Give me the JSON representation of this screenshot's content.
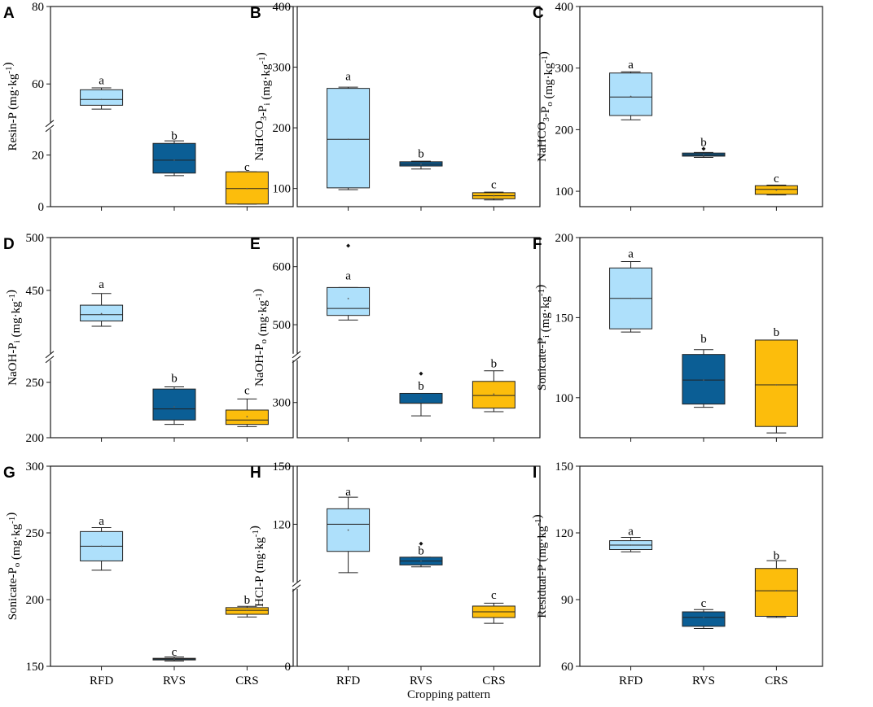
{
  "colors": {
    "RFD": "#aee0fb",
    "RVS": "#0b5e95",
    "CRS": "#fcbd0c",
    "axis": "#1a1a1a"
  },
  "x_title": "Cropping pattern",
  "chart_data": [
    {
      "id": "A",
      "type": "box",
      "ylabel": "Resin-P (mg·kg-1)",
      "categories": [
        "RFD",
        "RVS",
        "CRS"
      ],
      "segments": [
        {
          "domain": [
            0,
            30
          ],
          "ticks": [
            0,
            20
          ]
        },
        {
          "domain": [
            50,
            80
          ],
          "ticks": [
            60,
            80
          ]
        }
      ],
      "boxes": [
        {
          "cat": "RFD",
          "wlo": 53.5,
          "q1": 54.5,
          "med": 56,
          "q3": 58.5,
          "whi": 59,
          "mean": 56,
          "out": [],
          "letter": "a",
          "letterAt": 61
        },
        {
          "cat": "RVS",
          "wlo": 12,
          "q1": 13,
          "med": 18,
          "q3": 24.5,
          "whi": 25.5,
          "mean": 18,
          "out": [],
          "letter": "b",
          "letterAt": 27.5
        },
        {
          "cat": "CRS",
          "wlo": 1,
          "q1": 1,
          "med": 7,
          "q3": 13.5,
          "whi": 13.5,
          "mean": 7,
          "out": [],
          "letter": "c",
          "letterAt": 15.5
        }
      ]
    },
    {
      "id": "B",
      "type": "box",
      "ylabel": "NaHCO3-Pi (mg·kg-1)",
      "categories": [
        "RFD",
        "RVS",
        "CRS"
      ],
      "segments": [
        {
          "domain": [
            70,
            400
          ],
          "ticks": [
            100,
            200,
            300,
            400
          ]
        }
      ],
      "boxes": [
        {
          "cat": "RFD",
          "wlo": 98,
          "q1": 101,
          "med": 181,
          "q3": 265,
          "whi": 267,
          "mean": 181,
          "out": [],
          "letter": "a",
          "letterAt": 285
        },
        {
          "cat": "RVS",
          "wlo": 132,
          "q1": 137,
          "med": 140,
          "q3": 144,
          "whi": 145,
          "mean": 140,
          "out": [],
          "letter": "b",
          "letterAt": 158
        },
        {
          "cat": "CRS",
          "wlo": 81,
          "q1": 83,
          "med": 88,
          "q3": 93,
          "whi": 94,
          "mean": 88,
          "out": [],
          "letter": "c",
          "letterAt": 107
        }
      ]
    },
    {
      "id": "C",
      "type": "box",
      "ylabel": "NaHCO3-Po (mg·kg-1)",
      "categories": [
        "RFD",
        "RVS",
        "CRS"
      ],
      "segments": [
        {
          "domain": [
            75,
            400
          ],
          "ticks": [
            100,
            200,
            300,
            400
          ]
        }
      ],
      "boxes": [
        {
          "cat": "RFD",
          "wlo": 216,
          "q1": 223,
          "med": 253,
          "q3": 292,
          "whi": 294,
          "mean": 254,
          "out": [],
          "letter": "a",
          "letterAt": 306
        },
        {
          "cat": "RVS",
          "wlo": 155,
          "q1": 157,
          "med": 159,
          "q3": 162,
          "whi": 163,
          "mean": 159,
          "out": [
            169
          ],
          "letter": "b",
          "letterAt": 180
        },
        {
          "cat": "CRS",
          "wlo": 94,
          "q1": 95,
          "med": 103,
          "q3": 109,
          "whi": 110,
          "mean": 102,
          "out": [],
          "letter": "c",
          "letterAt": 121
        }
      ]
    },
    {
      "id": "D",
      "type": "box",
      "ylabel": "NaOH-Pi (mg·kg-1)",
      "categories": [
        "RFD",
        "RVS",
        "CRS"
      ],
      "segments": [
        {
          "domain": [
            200,
            270
          ],
          "ticks": [
            200,
            250
          ]
        },
        {
          "domain": [
            390,
            500
          ],
          "ticks": [
            450,
            500
          ]
        }
      ],
      "boxes": [
        {
          "cat": "RFD",
          "wlo": 416,
          "q1": 421,
          "med": 427,
          "q3": 436,
          "whi": 447,
          "mean": 428,
          "out": [],
          "letter": "a",
          "letterAt": 456
        },
        {
          "cat": "RVS",
          "wlo": 212,
          "q1": 216,
          "med": 226,
          "q3": 244,
          "whi": 246,
          "mean": 228,
          "out": [],
          "letter": "b",
          "letterAt": 254
        },
        {
          "cat": "CRS",
          "wlo": 210,
          "q1": 212,
          "med": 216,
          "q3": 225,
          "whi": 235,
          "mean": 219,
          "out": [],
          "letter": "c",
          "letterAt": 243
        }
      ]
    },
    {
      "id": "E",
      "type": "box",
      "ylabel": "NaOH-Po (mg·kg-1)",
      "categories": [
        "RFD",
        "RVS",
        "CRS"
      ],
      "segments": [
        {
          "domain": [
            250,
            360
          ],
          "ticks": [
            300
          ]
        },
        {
          "domain": [
            450,
            650
          ],
          "ticks": [
            500,
            600
          ]
        }
      ],
      "boxes": [
        {
          "cat": "RFD",
          "wlo": 508,
          "q1": 516,
          "med": 528,
          "q3": 564,
          "whi": 564,
          "mean": 545,
          "out": [
            636
          ],
          "letter": "a",
          "letterAt": 585
        },
        {
          "cat": "RVS",
          "wlo": 281,
          "q1": 299,
          "med": 299,
          "q3": 313,
          "whi": 313,
          "mean": 306,
          "out": [
            341
          ],
          "letter": "b",
          "letterAt": 324
        },
        {
          "cat": "CRS",
          "wlo": 287,
          "q1": 292,
          "med": 310,
          "q3": 330,
          "whi": 345,
          "mean": 312,
          "out": [],
          "letter": "b",
          "letterAt": 356
        }
      ]
    },
    {
      "id": "F",
      "type": "box",
      "ylabel": "Sonicate-Pi (mg·kg-1)",
      "categories": [
        "RFD",
        "RVS",
        "CRS"
      ],
      "segments": [
        {
          "domain": [
            75,
            200
          ],
          "ticks": [
            100,
            150,
            200
          ]
        }
      ],
      "boxes": [
        {
          "cat": "RFD",
          "wlo": 141,
          "q1": 143,
          "med": 162,
          "q3": 181,
          "whi": 185,
          "mean": 162,
          "out": [],
          "letter": "a",
          "letterAt": 190
        },
        {
          "cat": "RVS",
          "wlo": 94,
          "q1": 96,
          "med": 111,
          "q3": 127,
          "whi": 130,
          "mean": 111,
          "out": [],
          "letter": "b",
          "letterAt": 137
        },
        {
          "cat": "CRS",
          "wlo": 78,
          "q1": 82,
          "med": 108,
          "q3": 136,
          "whi": 136,
          "mean": 108,
          "out": [],
          "letter": "b",
          "letterAt": 141
        }
      ]
    },
    {
      "id": "G",
      "type": "box",
      "ylabel": "Sonicate-Po (mg·kg-1)",
      "categories": [
        "RFD",
        "RVS",
        "CRS"
      ],
      "segments": [
        {
          "domain": [
            150,
            300
          ],
          "ticks": [
            150,
            200,
            250,
            300
          ]
        }
      ],
      "boxes": [
        {
          "cat": "RFD",
          "wlo": 222,
          "q1": 229,
          "med": 240,
          "q3": 251,
          "whi": 254,
          "mean": 240,
          "out": [],
          "letter": "a",
          "letterAt": 259
        },
        {
          "cat": "RVS",
          "wlo": 154,
          "q1": 155,
          "med": 155.5,
          "q3": 156,
          "whi": 157,
          "mean": 155.5,
          "out": [],
          "letter": "c",
          "letterAt": 161
        },
        {
          "cat": "CRS",
          "wlo": 187,
          "q1": 189,
          "med": 192,
          "q3": 194,
          "whi": 195,
          "mean": 192,
          "out": [],
          "letter": "b",
          "letterAt": 200
        }
      ]
    },
    {
      "id": "H",
      "type": "box",
      "ylabel": "HCl-P (mg·kg-1)",
      "categories": [
        "RFD",
        "RVS",
        "CRS"
      ],
      "segments": [
        {
          "domain": [
            0,
            27
          ],
          "ticks": [
            0
          ]
        },
        {
          "domain": [
            90,
            150
          ],
          "ticks": [
            120,
            150
          ]
        }
      ],
      "boxes": [
        {
          "cat": "RFD",
          "wlo": 95,
          "q1": 106,
          "med": 120,
          "q3": 128,
          "whi": 134,
          "mean": 117,
          "out": [],
          "letter": "a",
          "letterAt": 137
        },
        {
          "cat": "RVS",
          "wlo": 98,
          "q1": 99,
          "med": 101,
          "q3": 103,
          "whi": 103,
          "mean": 101,
          "out": [
            110
          ],
          "letter": "b",
          "letterAt": 106.5
        },
        {
          "cat": "CRS",
          "wlo": 15,
          "q1": 17,
          "med": 19,
          "q3": 21,
          "whi": 22,
          "mean": 19,
          "out": [],
          "letter": "c",
          "letterAt": 25
        }
      ]
    },
    {
      "id": "I",
      "type": "box",
      "ylabel": "Residual-P (mg·kg-1)",
      "categories": [
        "RFD",
        "RVS",
        "CRS"
      ],
      "segments": [
        {
          "domain": [
            60,
            150
          ],
          "ticks": [
            60,
            90,
            120,
            150
          ]
        }
      ],
      "boxes": [
        {
          "cat": "RFD",
          "wlo": 111.5,
          "q1": 112.5,
          "med": 114.5,
          "q3": 116.5,
          "whi": 118,
          "mean": 114.5,
          "out": [],
          "letter": "a",
          "letterAt": 121
        },
        {
          "cat": "RVS",
          "wlo": 77,
          "q1": 78,
          "med": 82,
          "q3": 84.5,
          "whi": 85.5,
          "mean": 82,
          "out": [],
          "letter": "c",
          "letterAt": 88.5
        },
        {
          "cat": "CRS",
          "wlo": 82,
          "q1": 82.5,
          "med": 94,
          "q3": 104,
          "whi": 107.5,
          "mean": 94,
          "out": [],
          "letter": "b",
          "letterAt": 110
        }
      ]
    }
  ]
}
